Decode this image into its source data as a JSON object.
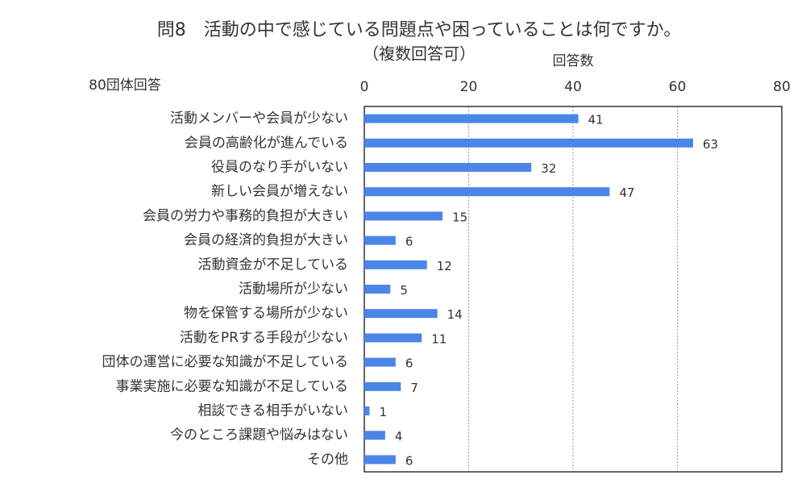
{
  "chart_data": {
    "type": "bar",
    "orientation": "horizontal",
    "title": "問8　活動の中で感じている問題点や困っていることは何ですか。",
    "subtitle": "（複数回答可）",
    "note": "80団体回答",
    "x_label": "回答数",
    "categories": [
      "活動メンバーや会員が少ない",
      "会員の高齢化が進んでいる",
      "役員のなり手がいない",
      "新しい会員が増えない",
      "会員の労力や事務的負担が大きい",
      "会員の経済的負担が大きい",
      "活動資金が不足している",
      "活動場所が少ない",
      "物を保管する場所が少ない",
      "活動をPRする手段が少ない",
      "団体の運営に必要な知識が不足している",
      "事業実施に必要な知識が不足している",
      "相談できる相手がいない",
      "今のところ課題や悩みはない",
      "その他"
    ],
    "values": [
      41,
      63,
      32,
      47,
      15,
      6,
      12,
      5,
      14,
      11,
      6,
      7,
      1,
      4,
      6
    ],
    "color": "#4a86e8",
    "xlim": [
      0,
      80
    ],
    "xticks": [
      0,
      20,
      40,
      60,
      80
    ],
    "grid": true
  }
}
